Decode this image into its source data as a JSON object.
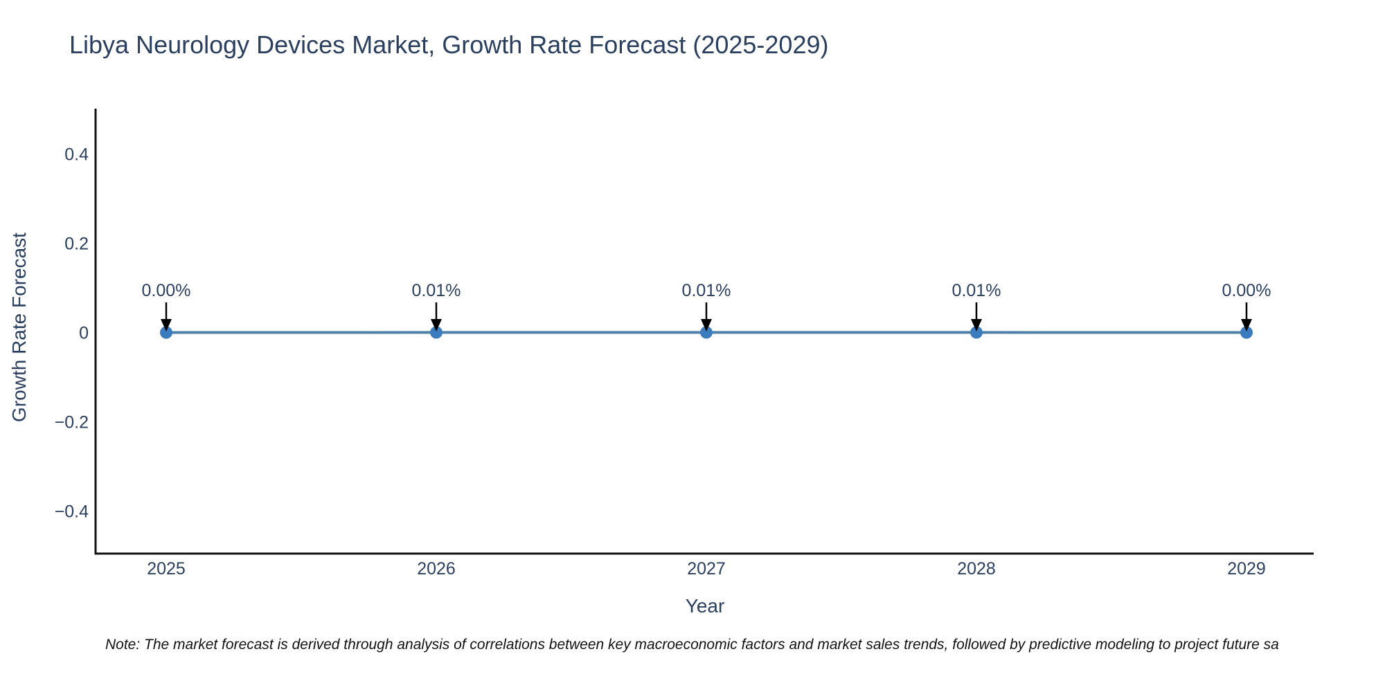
{
  "title": "Libya Neurology Devices Market, Growth Rate Forecast (2025-2029)",
  "note": "Note: The market forecast is derived through analysis of correlations between key macroeconomic factors and market sales trends, followed by predictive modeling to project future sa",
  "colors": {
    "text": "#2a3f5f",
    "axis_line": "#111111",
    "series_line": "#4f81ab",
    "marker": "#3b7cbe",
    "arrow": "#000000",
    "background": "#ffffff"
  },
  "chart_data": {
    "type": "line",
    "title": "Libya Neurology Devices Market, Growth Rate Forecast (2025-2029)",
    "xlabel": "Year",
    "ylabel": "Growth Rate Forecast",
    "x": [
      2025,
      2026,
      2027,
      2028,
      2029
    ],
    "xtick_labels": [
      "2025",
      "2026",
      "2027",
      "2028",
      "2029"
    ],
    "values_pct": [
      0.0,
      0.01,
      0.01,
      0.01,
      0.0
    ],
    "point_labels": [
      "0.00%",
      "0.01%",
      "0.01%",
      "0.01%",
      "0.00%"
    ],
    "ylim": [
      -0.5,
      0.5
    ],
    "yticks": [
      -0.4,
      -0.2,
      0,
      0.2,
      0.4
    ],
    "ytick_labels": [
      "−0.4",
      "−0.2",
      "0",
      "0.2",
      "0.4"
    ],
    "grid": false,
    "legend": "none",
    "annotations": "each point labeled with percent value and downward black arrow"
  }
}
